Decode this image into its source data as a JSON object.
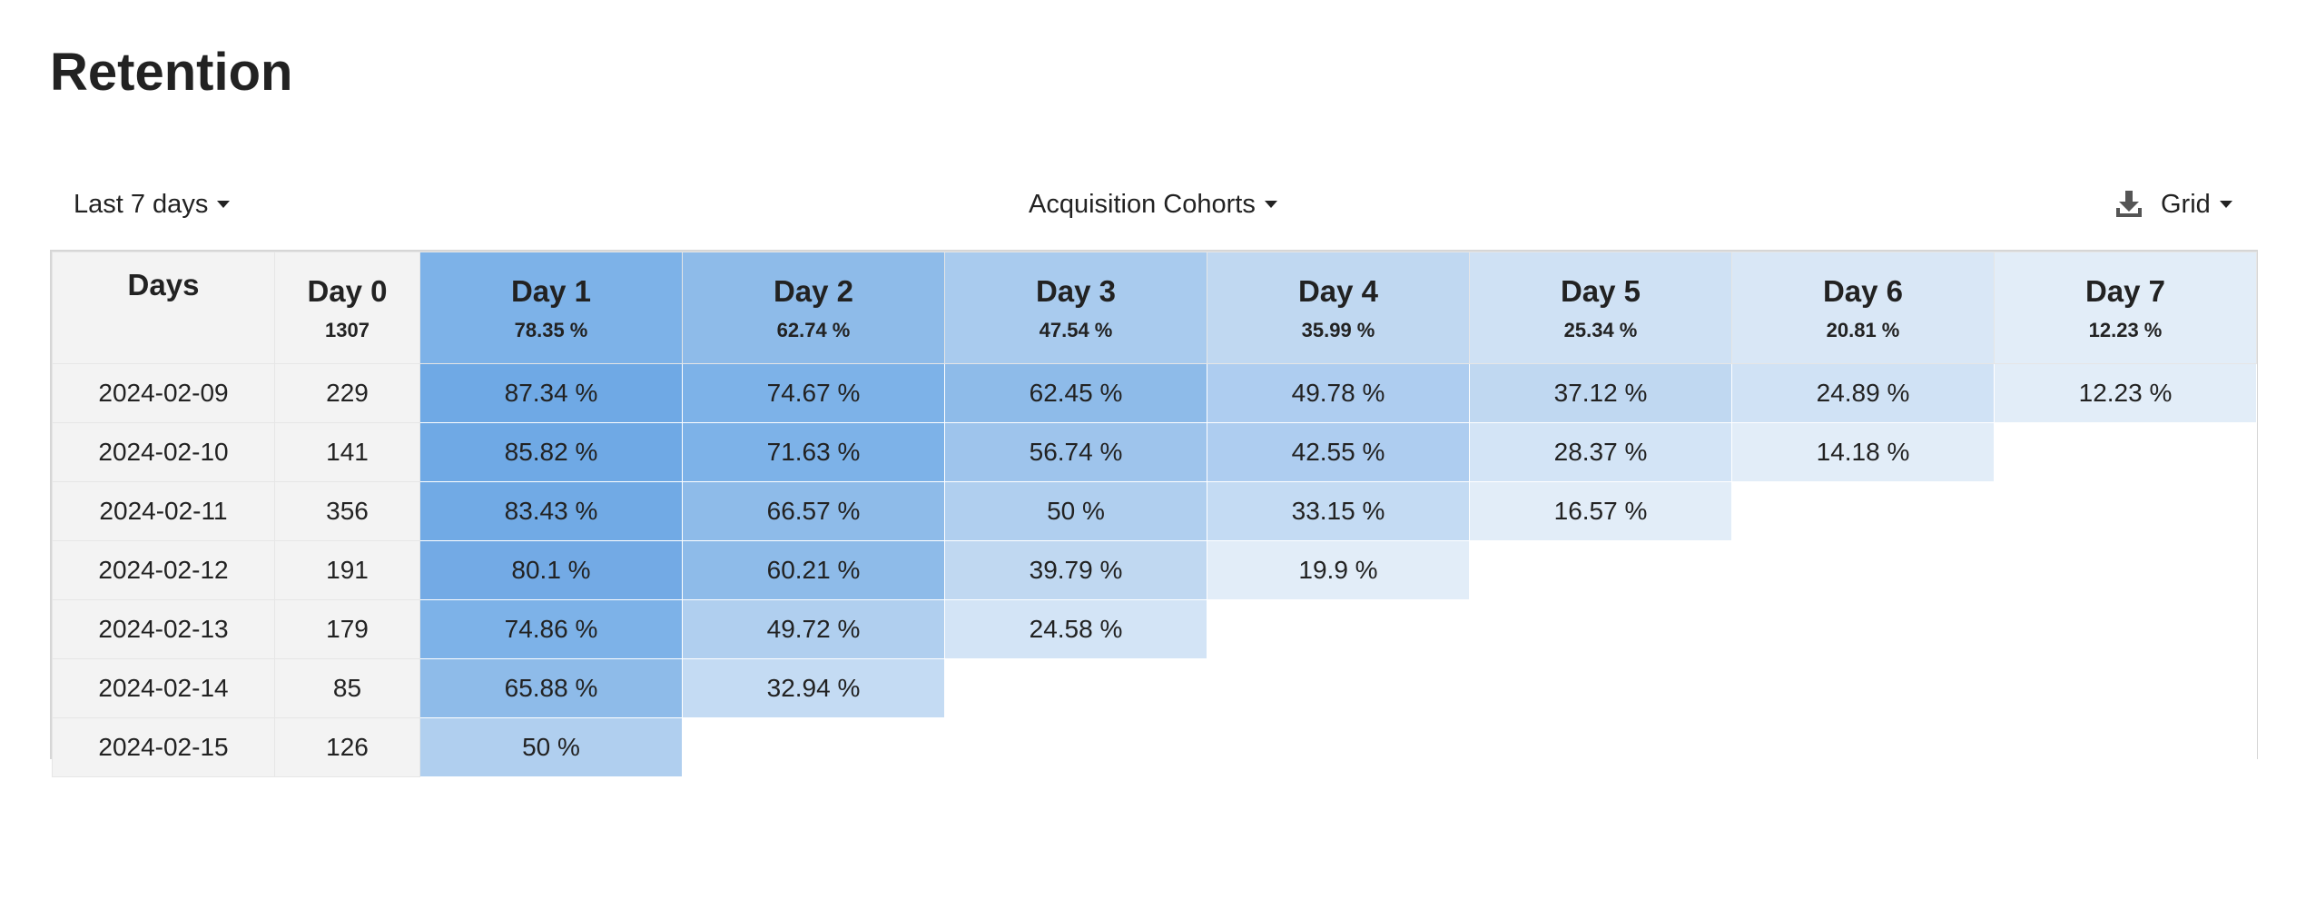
{
  "title": "Retention",
  "toolbar": {
    "date_range": "Last 7 days",
    "cohort_type": "Acquisition Cohorts",
    "view": "Grid"
  },
  "colors": {
    "c1": "#7db2e8",
    "c2": "#8ebbe9",
    "c3": "#a9cbee",
    "c4": "#c0d8f1",
    "c5": "#cfe1f4",
    "c6": "#d9e7f6",
    "c7": "#e2edf8",
    "first_col": "#f3f3f3"
  },
  "table": {
    "headers": [
      {
        "label": "Days",
        "sub": ""
      },
      {
        "label": "Day 0",
        "sub": "1307"
      },
      {
        "label": "Day 1",
        "sub": "78.35 %"
      },
      {
        "label": "Day 2",
        "sub": "62.74 %"
      },
      {
        "label": "Day 3",
        "sub": "47.54 %"
      },
      {
        "label": "Day 4",
        "sub": "35.99 %"
      },
      {
        "label": "Day 5",
        "sub": "25.34 %"
      },
      {
        "label": "Day 6",
        "sub": "20.81 %"
      },
      {
        "label": "Day 7",
        "sub": "12.23 %"
      }
    ],
    "rows": [
      {
        "date": "2024-02-09",
        "count": "229",
        "values": [
          "87.34 %",
          "74.67 %",
          "62.45 %",
          "49.78 %",
          "37.12 %",
          "24.89 %",
          "12.23 %"
        ]
      },
      {
        "date": "2024-02-10",
        "count": "141",
        "values": [
          "85.82 %",
          "71.63 %",
          "56.74 %",
          "42.55 %",
          "28.37 %",
          "14.18 %"
        ]
      },
      {
        "date": "2024-02-11",
        "count": "356",
        "values": [
          "83.43 %",
          "66.57 %",
          "50 %",
          "33.15 %",
          "16.57 %"
        ]
      },
      {
        "date": "2024-02-12",
        "count": "191",
        "values": [
          "80.1 %",
          "60.21 %",
          "39.79 %",
          "19.9 %"
        ]
      },
      {
        "date": "2024-02-13",
        "count": "179",
        "values": [
          "74.86 %",
          "49.72 %",
          "24.58 %"
        ]
      },
      {
        "date": "2024-02-14",
        "count": "85",
        "values": [
          "65.88 %",
          "32.94 %"
        ]
      },
      {
        "date": "2024-02-15",
        "count": "126",
        "values": [
          "50 %"
        ]
      }
    ]
  }
}
